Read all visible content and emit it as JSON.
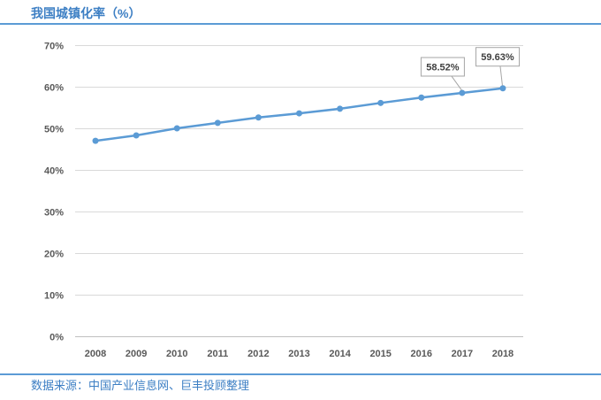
{
  "colors": {
    "accent": "#5b9bd5",
    "title": "#3d7fc4",
    "grid": "#d9d9d9"
  },
  "chart_data": {
    "type": "line",
    "title": "我国城镇化率（%）",
    "categories": [
      "2008",
      "2009",
      "2010",
      "2011",
      "2012",
      "2013",
      "2014",
      "2015",
      "2016",
      "2017",
      "2018"
    ],
    "series": [
      {
        "values": [
          47.0,
          48.3,
          50.0,
          51.3,
          52.6,
          53.6,
          54.7,
          56.1,
          57.4,
          58.52,
          59.63
        ],
        "color": "#5b9bd5"
      }
    ],
    "ylim": [
      0,
      70
    ],
    "yticks": [
      "0%",
      "10%",
      "20%",
      "30%",
      "40%",
      "50%",
      "60%",
      "70%"
    ],
    "data_labels": [
      null,
      null,
      null,
      null,
      null,
      null,
      null,
      null,
      null,
      "58.52%",
      "59.63%"
    ],
    "grid": true,
    "legend": "none"
  },
  "footer": {
    "source": "数据来源：中国产业信息网、巨丰投顾整理"
  }
}
